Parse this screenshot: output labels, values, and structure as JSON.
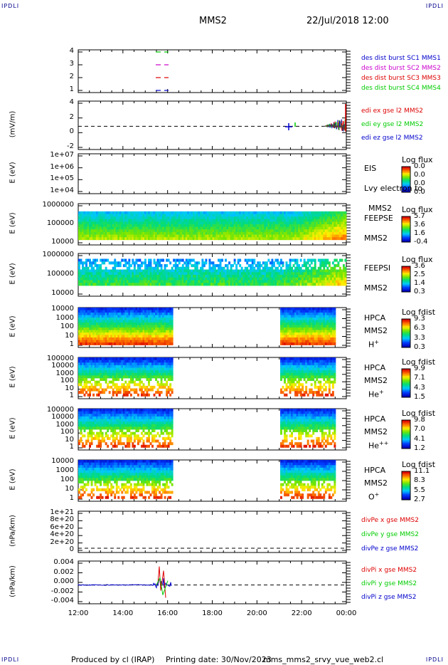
{
  "header": {
    "corner_left": "IPDLI",
    "corner_right": "IPDLI",
    "title": "MMS2",
    "datetime": "22/Jul/2018 12:00"
  },
  "colors": {
    "sc1": "#0000cc",
    "sc2": "#cc00cc",
    "sc3": "#dd0000",
    "sc4": "#00cc00",
    "ex": "#dd0000",
    "ey": "#00cc00",
    "ez": "#0000cc"
  },
  "xaxis": {
    "labels": [
      "12:00",
      "14:00",
      "16:00",
      "18:00",
      "20:00",
      "22:00",
      "00:00"
    ]
  },
  "footer": {
    "produced": "Produced by cl (IRAP)",
    "printed": "Printing date: 30/Nov/2023",
    "program": "mms_mms2_srvy_vue_web2.cl"
  },
  "chart_data": [
    {
      "type": "line",
      "panel": "burst",
      "ylim": [
        0.5,
        4.5
      ],
      "yticks": [
        "4",
        "3",
        "2",
        "1"
      ],
      "series": [
        {
          "name": "des dist burst SC1 MMS1",
          "value": 4
        },
        {
          "name": "des dist burst SC2 MMS2",
          "value": 3
        },
        {
          "name": "des dist burst SC3 MMS3",
          "value": 2
        },
        {
          "name": "des dist burst SC4 MMS4",
          "value": 1
        }
      ],
      "legend": [
        "des dist burst SC1 MMS1",
        "des dist burst SC2 MMS2",
        "des dist burst SC3 MMS3",
        "des dist burst SC4 MMS4"
      ]
    },
    {
      "type": "line",
      "panel": "edi",
      "ylabel": "(mV/m)",
      "ylim": [
        -3,
        4.5
      ],
      "yticks": [
        "4",
        "2",
        "0",
        "-2"
      ],
      "legend": [
        "edi ex gse l2 MMS2",
        "edi ey gse l2 MMS2",
        "edi ez gse l2 MMS2"
      ]
    },
    {
      "type": "heatmap",
      "panel": "eis",
      "ylabel": "E (eV)",
      "yticks": [
        "1e+07",
        "1e+06",
        "1e+05",
        "1e+04"
      ],
      "side": [
        "EIS",
        "Lvy electron to",
        "MMS2"
      ],
      "colorbar": {
        "title": "Log flux",
        "ticks": [
          "0.0",
          "0.0",
          "0.0",
          "0.0"
        ]
      }
    },
    {
      "type": "heatmap",
      "panel": "feeps_e",
      "ylabel": "E (eV)",
      "yticks": [
        "1000000",
        "100000",
        "10000"
      ],
      "side": [
        "FEEPSE",
        "MMS2"
      ],
      "colorbar": {
        "title": "Log flux",
        "ticks": [
          "5.7",
          "3.6",
          "1.6",
          "-0.4"
        ]
      }
    },
    {
      "type": "heatmap",
      "panel": "feeps_i",
      "ylabel": "E (eV)",
      "yticks": [
        "1000000",
        "100000",
        "10000"
      ],
      "side": [
        "FEEPSI",
        "MMS2"
      ],
      "colorbar": {
        "title": "Log flux",
        "ticks": [
          "3.6",
          "2.5",
          "1.4",
          "0.3"
        ]
      }
    },
    {
      "type": "heatmap",
      "panel": "hpca_h",
      "ylabel": "E (eV)",
      "yticks": [
        "10000",
        "1000",
        "100",
        "10",
        "1"
      ],
      "side": [
        "HPCA",
        "MMS2",
        "H+"
      ],
      "colorbar": {
        "title": "Log fdist",
        "ticks": [
          "9.3",
          "6.3",
          "3.3",
          "0.3"
        ]
      }
    },
    {
      "type": "heatmap",
      "panel": "hpca_he",
      "ylabel": "E (eV)",
      "yticks": [
        "100000",
        "10000",
        "1000",
        "100",
        "10",
        "1"
      ],
      "side": [
        "HPCA",
        "MMS2",
        "He+"
      ],
      "colorbar": {
        "title": "Log fdist",
        "ticks": [
          "9.9",
          "7.1",
          "4.3",
          "1.5"
        ]
      }
    },
    {
      "type": "heatmap",
      "panel": "hpca_hepp",
      "ylabel": "E (eV)",
      "yticks": [
        "100000",
        "10000",
        "1000",
        "100",
        "10",
        "1"
      ],
      "side": [
        "HPCA",
        "MMS2",
        "He++"
      ],
      "colorbar": {
        "title": "Log fdist",
        "ticks": [
          "9.8",
          "7.0",
          "4.1",
          "1.2"
        ]
      }
    },
    {
      "type": "heatmap",
      "panel": "hpca_o",
      "ylabel": "E (eV)",
      "yticks": [
        "10000",
        "1000",
        "100",
        "10",
        "1"
      ],
      "side": [
        "HPCA",
        "MMS2",
        "O+"
      ],
      "colorbar": {
        "title": "Log fdist",
        "ticks": [
          "11.1",
          "8.3",
          "5.5",
          "2.7"
        ]
      }
    },
    {
      "type": "line",
      "panel": "divpe",
      "ylabel": "(nPa/km)",
      "yticks": [
        "1e+21",
        "8e+20",
        "6e+20",
        "4e+20",
        "2e+20",
        "0"
      ],
      "legend": [
        "divPe x gse MMS2",
        "divPe y gse MMS2",
        "divPe z gse MMS2"
      ]
    },
    {
      "type": "line",
      "panel": "divpi",
      "ylabel": "(nPa/km)",
      "yticks": [
        "0.004",
        "0.002",
        "0.000",
        "-0.002",
        "-0.004"
      ],
      "legend": [
        "divPi x gse MMS2",
        "divPi y gse MMS2",
        "divPi z gse MMS2"
      ]
    }
  ]
}
